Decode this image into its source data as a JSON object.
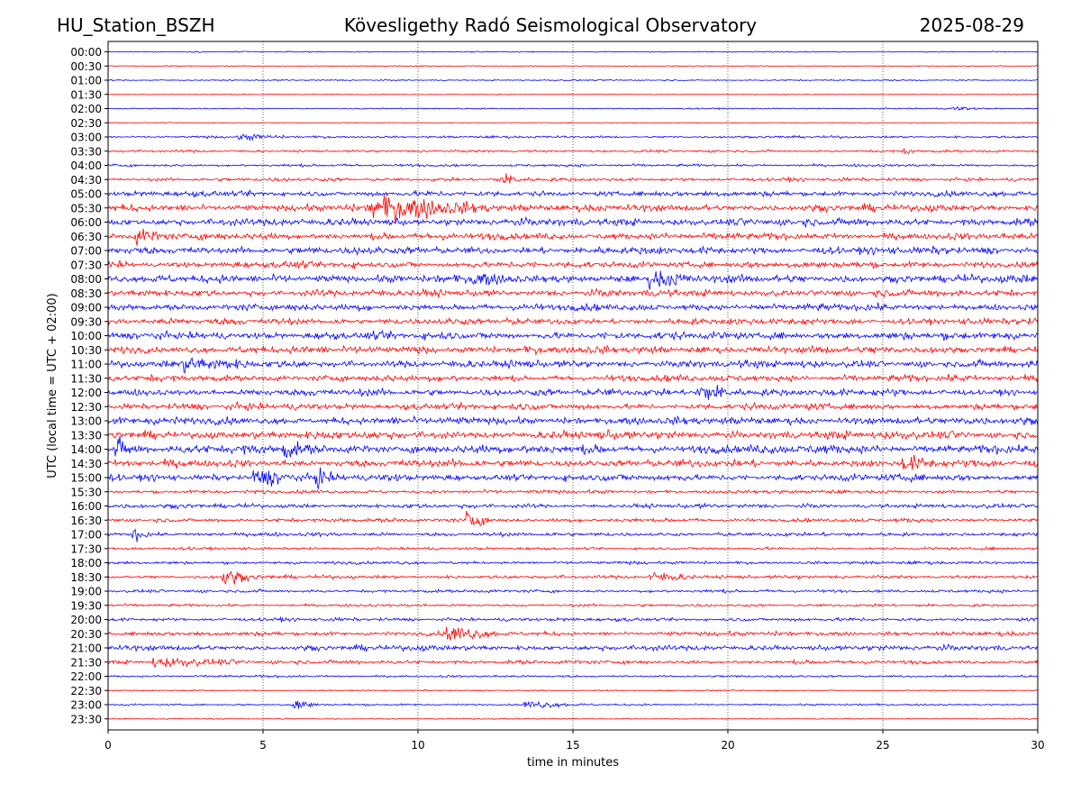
{
  "header": {
    "station": "HU_Station_BSZH",
    "observatory": "Kövesligethy Radó Seismological Observatory",
    "date": "2025-08-29"
  },
  "chart_data": {
    "type": "line",
    "title": "Kövesligethy Radó Seismological Observatory",
    "xlabel": "time in minutes",
    "ylabel": "UTC (local time = UTC + 02:00)",
    "xlim": [
      0,
      30
    ],
    "xticks": [
      0,
      5,
      10,
      15,
      20,
      25,
      30
    ],
    "grid": "vertical dotted lines at 5-minute intervals",
    "colors": [
      "#0000ff",
      "#ff0000"
    ],
    "trace_labels": [
      "00:00",
      "00:30",
      "01:00",
      "01:30",
      "02:00",
      "02:30",
      "03:00",
      "03:30",
      "04:00",
      "04:30",
      "05:00",
      "05:30",
      "06:00",
      "06:30",
      "07:00",
      "07:30",
      "08:00",
      "08:30",
      "09:00",
      "09:30",
      "10:00",
      "10:30",
      "11:00",
      "11:30",
      "12:00",
      "12:30",
      "13:00",
      "13:30",
      "14:00",
      "14:30",
      "15:00",
      "15:30",
      "16:00",
      "16:30",
      "17:00",
      "17:30",
      "18:00",
      "18:30",
      "19:00",
      "19:30",
      "20:00",
      "20:30",
      "21:00",
      "21:30",
      "22:00",
      "22:30",
      "23:00",
      "23:30"
    ],
    "noise_level": [
      0.6,
      0.5,
      0.7,
      0.5,
      0.7,
      0.5,
      1.2,
      1.3,
      1.4,
      1.8,
      2.8,
      3.5,
      3.8,
      3.5,
      3.8,
      3.3,
      4.0,
      3.5,
      3.5,
      3.3,
      3.8,
      3.8,
      3.8,
      3.3,
      3.5,
      3.3,
      3.8,
      4.2,
      4.6,
      3.8,
      3.5,
      1.8,
      2.2,
      2.0,
      2.0,
      1.4,
      1.6,
      1.8,
      1.6,
      1.4,
      1.8,
      2.2,
      2.8,
      2.0,
      1.2,
      0.7,
      1.0,
      0.6
    ],
    "events": [
      {
        "trace": "02:00",
        "minute": 27.3,
        "amplitude": 3,
        "duration": 0.6
      },
      {
        "trace": "03:00",
        "minute": 4.3,
        "amplitude": 3,
        "duration": 1.2
      },
      {
        "trace": "03:30",
        "minute": 25.7,
        "amplitude": 4,
        "duration": 0.3
      },
      {
        "trace": "04:30",
        "minute": 12.7,
        "amplitude": 6,
        "duration": 0.8
      },
      {
        "trace": "05:30",
        "minute": 8.5,
        "amplitude": 13,
        "duration": 3.5
      },
      {
        "trace": "06:30",
        "minute": 0.9,
        "amplitude": 8,
        "duration": 0.8
      },
      {
        "trace": "08:00",
        "minute": 17.5,
        "amplitude": 8,
        "duration": 1.2
      },
      {
        "trace": "08:00",
        "minute": 11.8,
        "amplitude": 7,
        "duration": 0.8
      },
      {
        "trace": "11:00",
        "minute": 2.5,
        "amplitude": 7,
        "duration": 1.5
      },
      {
        "trace": "12:00",
        "minute": 19.0,
        "amplitude": 9,
        "duration": 1.4
      },
      {
        "trace": "14:00",
        "minute": 0.3,
        "amplitude": 10,
        "duration": 0.5
      },
      {
        "trace": "14:00",
        "minute": 5.7,
        "amplitude": 9,
        "duration": 0.5
      },
      {
        "trace": "14:30",
        "minute": 25.7,
        "amplitude": 7,
        "duration": 0.8
      },
      {
        "trace": "15:00",
        "minute": 4.7,
        "amplitude": 8,
        "duration": 1.5
      },
      {
        "trace": "15:00",
        "minute": 6.7,
        "amplitude": 9,
        "duration": 0.4
      },
      {
        "trace": "16:30",
        "minute": 11.6,
        "amplitude": 10,
        "duration": 0.7
      },
      {
        "trace": "17:00",
        "minute": 0.8,
        "amplitude": 7,
        "duration": 0.5
      },
      {
        "trace": "18:30",
        "minute": 3.7,
        "amplitude": 9,
        "duration": 0.9
      },
      {
        "trace": "18:30",
        "minute": 17.5,
        "amplitude": 5,
        "duration": 1.5
      },
      {
        "trace": "20:30",
        "minute": 11.0,
        "amplitude": 9,
        "duration": 1.2
      },
      {
        "trace": "21:30",
        "minute": 1.5,
        "amplitude": 5,
        "duration": 2.5
      },
      {
        "trace": "23:00",
        "minute": 6.0,
        "amplitude": 8,
        "duration": 0.6
      },
      {
        "trace": "23:00",
        "minute": 13.5,
        "amplitude": 4,
        "duration": 1.5
      }
    ]
  }
}
